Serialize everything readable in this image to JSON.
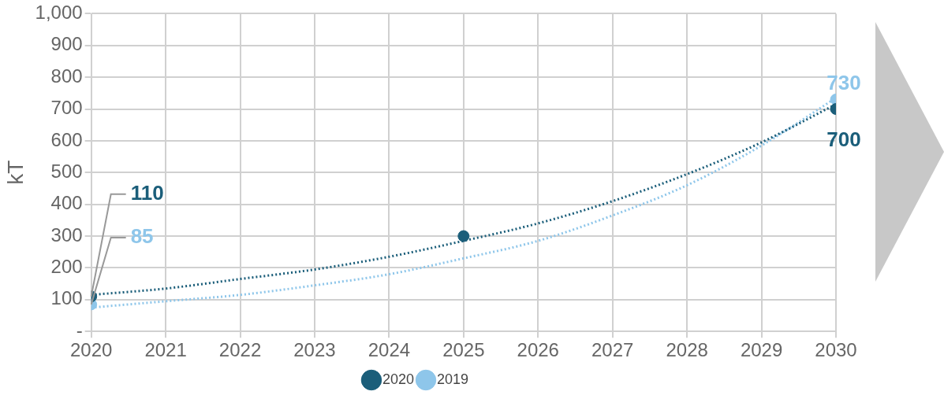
{
  "chart_data": {
    "type": "scatter",
    "ylabel": "kT",
    "xlim": [
      2020,
      2030
    ],
    "xticks": [
      2020,
      2021,
      2022,
      2023,
      2024,
      2025,
      2026,
      2027,
      2028,
      2029,
      2030
    ],
    "ylim": [
      0,
      1000
    ],
    "yticks": [
      {
        "value": 0,
        "label": "-"
      },
      100,
      200,
      300,
      400,
      500,
      600,
      700,
      800,
      900,
      {
        "value": 1000,
        "label": "1,000"
      }
    ],
    "grid": true,
    "legend": "bottom",
    "marker": "circle",
    "series": [
      {
        "name": "2020",
        "color": "#1b5e7a",
        "x": [
          2020,
          2025,
          2030
        ],
        "values": [
          110,
          300,
          700
        ],
        "value_labels": [
          "110",
          null,
          "700"
        ]
      },
      {
        "name": "2019",
        "color": "#8ec6ea",
        "x": [
          2020,
          2030
        ],
        "values": [
          85,
          730
        ],
        "value_labels": [
          "85",
          "730"
        ]
      },
      {
        "type": "line",
        "line_style": "dotted",
        "marker": "none",
        "color": "#1b5e7a",
        "x": [
          2020,
          2021,
          2022,
          2023,
          2024,
          2025,
          2026,
          2027,
          2028,
          2029,
          2030
        ],
        "values": [
          115,
          135,
          165,
          195,
          235,
          285,
          340,
          410,
          495,
          595,
          715
        ]
      },
      {
        "type": "line",
        "line_style": "dotted",
        "marker": "none",
        "color": "#8ec6ea",
        "x": [
          2020,
          2021,
          2022,
          2023,
          2024,
          2025,
          2026,
          2027,
          2028,
          2029,
          2030
        ],
        "values": [
          75,
          95,
          115,
          145,
          180,
          230,
          285,
          365,
          460,
          585,
          735
        ]
      }
    ]
  }
}
